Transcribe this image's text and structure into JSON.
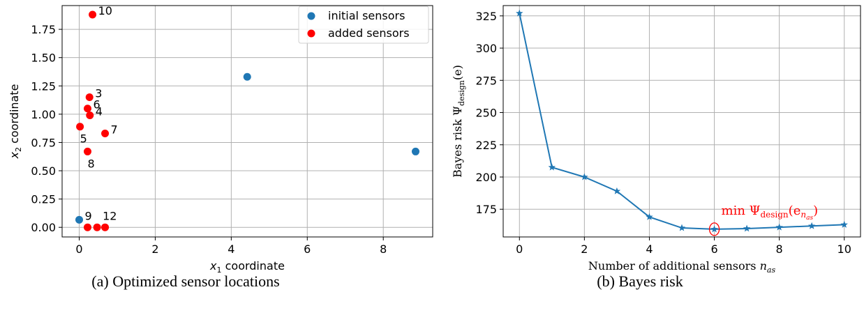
{
  "chart_data": [
    {
      "type": "scatter",
      "xlabel_var": "x",
      "xlabel_sub": "1",
      "xlabel_rest": " coordinate",
      "ylabel_var": "x",
      "ylabel_sub": "2",
      "ylabel_rest": " coordinate",
      "xlim": [
        -0.45,
        9.3
      ],
      "ylim": [
        -0.085,
        1.96
      ],
      "xticks": [
        0,
        2,
        4,
        6,
        8
      ],
      "yticks": [
        0.0,
        0.25,
        0.5,
        0.75,
        1.0,
        1.25,
        1.5,
        1.75
      ],
      "ytick_labels": [
        "0.00",
        "0.25",
        "0.50",
        "0.75",
        "1.00",
        "1.25",
        "1.50",
        "1.75"
      ],
      "grid": true,
      "legend_position": "top-right",
      "series": [
        {
          "name": "initial sensors",
          "color": "#1f77b4",
          "points": [
            {
              "x": 0.0,
              "y": 0.067
            },
            {
              "x": 4.42,
              "y": 1.33
            },
            {
              "x": 8.85,
              "y": 0.67
            }
          ]
        },
        {
          "name": "added sensors",
          "color": "#ff0000",
          "points": [
            {
              "x": 0.35,
              "y": 1.88
            },
            {
              "x": 0.27,
              "y": 1.15
            },
            {
              "x": 0.22,
              "y": 1.05
            },
            {
              "x": 0.28,
              "y": 0.99
            },
            {
              "x": 0.02,
              "y": 0.89
            },
            {
              "x": 0.68,
              "y": 0.83
            },
            {
              "x": 0.22,
              "y": 0.67
            },
            {
              "x": 0.22,
              "y": 0.0
            },
            {
              "x": 0.47,
              "y": 0.0
            },
            {
              "x": 0.68,
              "y": 0.0
            }
          ]
        }
      ],
      "annotations": [
        {
          "text": "10",
          "x": 0.35,
          "y": 1.88,
          "pos": "right"
        },
        {
          "text": "3",
          "x": 0.27,
          "y": 1.15,
          "pos": "right"
        },
        {
          "text": "6",
          "x": 0.22,
          "y": 1.05,
          "pos": "right"
        },
        {
          "text": "4",
          "x": 0.28,
          "y": 0.99,
          "pos": "right"
        },
        {
          "text": "5",
          "x": 0.02,
          "y": 0.89,
          "pos": "below"
        },
        {
          "text": "7",
          "x": 0.68,
          "y": 0.83,
          "pos": "right"
        },
        {
          "text": "8",
          "x": 0.22,
          "y": 0.67,
          "pos": "below"
        },
        {
          "text": "9",
          "x": 0.0,
          "y": 0.067,
          "pos": "right"
        },
        {
          "text": "12",
          "x": 0.47,
          "y": 0.067,
          "pos": "right"
        }
      ]
    },
    {
      "type": "line",
      "xlabel_text": "Number of additional sensors ",
      "xlabel_var": "n",
      "xlabel_sub": "as",
      "ylabel_text": "Bayes risk Ψ",
      "ylabel_sub": "design",
      "ylabel_rest": "(e)",
      "xlim": [
        -0.5,
        10.5
      ],
      "ylim": [
        153.5,
        333
      ],
      "xticks": [
        0,
        2,
        4,
        6,
        8,
        10
      ],
      "yticks": [
        175,
        200,
        225,
        250,
        275,
        300,
        325
      ],
      "grid": true,
      "series": [
        {
          "color": "#1f77b4",
          "marker": "star",
          "x": [
            0,
            1,
            2,
            3,
            4,
            5,
            6,
            7,
            8,
            9,
            10
          ],
          "y": [
            327,
            207.5,
            200,
            189,
            169,
            160.5,
            159.5,
            160,
            161,
            162,
            163
          ]
        }
      ],
      "highlight": {
        "x": 6,
        "y": 159.5,
        "color": "#ff0000"
      },
      "annotation": {
        "prefix": "min Ψ",
        "sub": "design",
        "open": "(e",
        "inner_sub": "n",
        "inner_subsub": "as",
        "close": ")",
        "color": "#ff0000"
      }
    }
  ],
  "captions": {
    "a": "(a) Optimized sensor locations",
    "b": "(b) Bayes risk"
  }
}
